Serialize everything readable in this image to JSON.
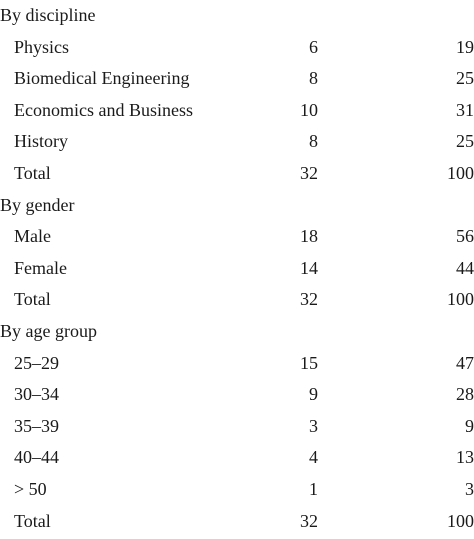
{
  "sections": [
    {
      "heading": "By discipline",
      "rows": [
        {
          "label": "Physics",
          "n": "6",
          "pct": "19"
        },
        {
          "label": "Biomedical Engineering",
          "n": "8",
          "pct": "25"
        },
        {
          "label": "Economics and Business",
          "n": "10",
          "pct": "31"
        },
        {
          "label": "History",
          "n": "8",
          "pct": "25"
        },
        {
          "label": "Total",
          "n": "32",
          "pct": "100"
        }
      ]
    },
    {
      "heading": "By gender",
      "rows": [
        {
          "label": "Male",
          "n": "18",
          "pct": "56"
        },
        {
          "label": "Female",
          "n": "14",
          "pct": "44"
        },
        {
          "label": "Total",
          "n": "32",
          "pct": "100"
        }
      ]
    },
    {
      "heading": "By age group",
      "rows": [
        {
          "label": "25–29",
          "n": "15",
          "pct": "47"
        },
        {
          "label": "30–34",
          "n": "9",
          "pct": "28"
        },
        {
          "label": "35–39",
          "n": "3",
          "pct": "9"
        },
        {
          "label": "40–44",
          "n": "4",
          "pct": "13"
        },
        {
          "label": "> 50",
          "n": "1",
          "pct": "3"
        },
        {
          "label": "Total",
          "n": "32",
          "pct": "100"
        }
      ]
    }
  ]
}
